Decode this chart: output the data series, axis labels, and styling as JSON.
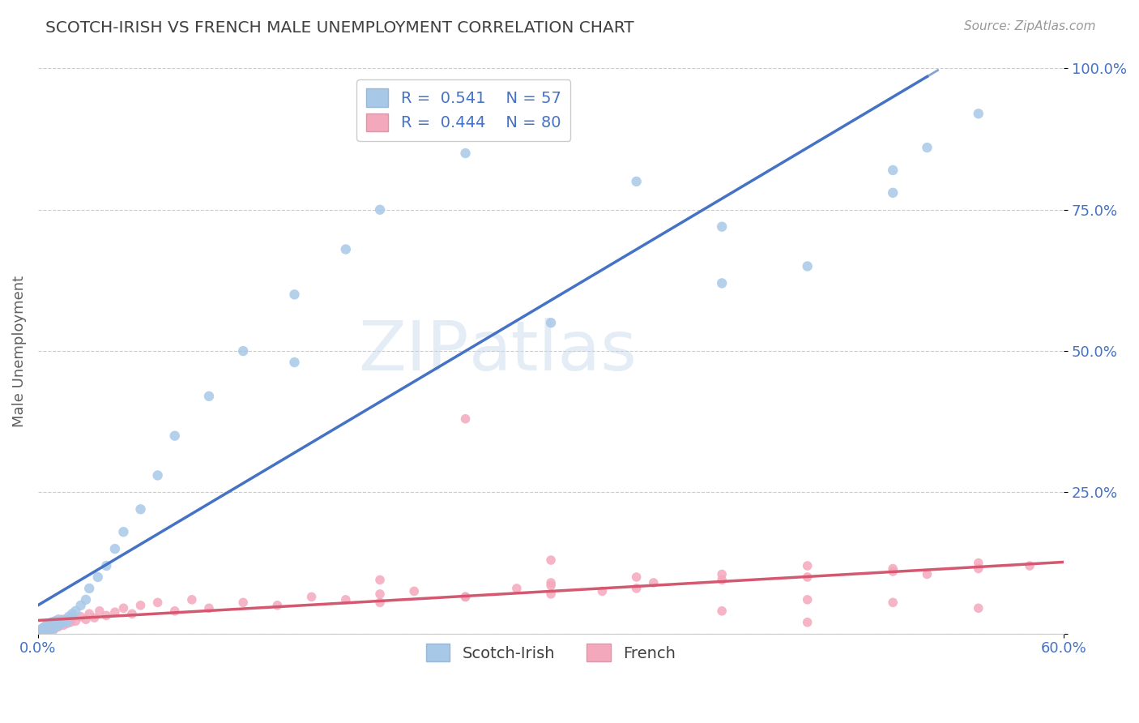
{
  "title": "SCOTCH-IRISH VS FRENCH MALE UNEMPLOYMENT CORRELATION CHART",
  "source": "Source: ZipAtlas.com",
  "ylabel": "Male Unemployment",
  "xlim": [
    0.0,
    0.6
  ],
  "ylim": [
    0.0,
    1.0
  ],
  "yticks": [
    0.0,
    0.25,
    0.5,
    0.75,
    1.0
  ],
  "ytick_labels": [
    "",
    "25.0%",
    "50.0%",
    "75.0%",
    "100.0%"
  ],
  "xticks": [
    0.0,
    0.6
  ],
  "xtick_labels": [
    "0.0%",
    "60.0%"
  ],
  "scotch_irish_R": 0.541,
  "scotch_irish_N": 57,
  "french_R": 0.444,
  "french_N": 80,
  "scotch_irish_marker_color": "#a8c8e8",
  "scotch_irish_line_color": "#4472c4",
  "french_marker_color": "#f4a8bc",
  "french_line_color": "#d45870",
  "watermark_zip": "ZIP",
  "watermark_atlas": "atlas",
  "background_color": "#ffffff",
  "grid_color": "#cccccc",
  "tick_color": "#4472c4",
  "title_color": "#404040",
  "ylabel_color": "#606060",
  "si_x": [
    0.001,
    0.002,
    0.003,
    0.003,
    0.004,
    0.004,
    0.005,
    0.005,
    0.005,
    0.006,
    0.006,
    0.007,
    0.007,
    0.008,
    0.008,
    0.009,
    0.009,
    0.01,
    0.01,
    0.011,
    0.012,
    0.012,
    0.013,
    0.014,
    0.015,
    0.016,
    0.017,
    0.018,
    0.02,
    0.022,
    0.025,
    0.028,
    0.03,
    0.035,
    0.04,
    0.045,
    0.05,
    0.06,
    0.07,
    0.08,
    0.1,
    0.12,
    0.15,
    0.18,
    0.2,
    0.25,
    0.3,
    0.35,
    0.4,
    0.45,
    0.5,
    0.52,
    0.55,
    0.3,
    0.4,
    0.5,
    0.15
  ],
  "si_y": [
    0.005,
    0.008,
    0.003,
    0.01,
    0.004,
    0.012,
    0.006,
    0.015,
    0.002,
    0.008,
    0.018,
    0.005,
    0.012,
    0.01,
    0.02,
    0.007,
    0.015,
    0.012,
    0.022,
    0.018,
    0.015,
    0.025,
    0.02,
    0.018,
    0.022,
    0.025,
    0.02,
    0.03,
    0.035,
    0.04,
    0.05,
    0.06,
    0.08,
    0.1,
    0.12,
    0.15,
    0.18,
    0.22,
    0.28,
    0.35,
    0.42,
    0.5,
    0.6,
    0.68,
    0.75,
    0.85,
    0.9,
    0.8,
    0.72,
    0.65,
    0.82,
    0.86,
    0.92,
    0.55,
    0.62,
    0.78,
    0.48
  ],
  "fr_x": [
    0.001,
    0.002,
    0.002,
    0.003,
    0.003,
    0.004,
    0.004,
    0.005,
    0.005,
    0.006,
    0.006,
    0.007,
    0.007,
    0.008,
    0.008,
    0.009,
    0.009,
    0.01,
    0.01,
    0.011,
    0.012,
    0.012,
    0.013,
    0.014,
    0.015,
    0.016,
    0.017,
    0.018,
    0.019,
    0.02,
    0.022,
    0.025,
    0.028,
    0.03,
    0.033,
    0.036,
    0.04,
    0.045,
    0.05,
    0.055,
    0.06,
    0.07,
    0.08,
    0.09,
    0.1,
    0.12,
    0.14,
    0.16,
    0.18,
    0.2,
    0.22,
    0.25,
    0.28,
    0.3,
    0.33,
    0.36,
    0.4,
    0.45,
    0.5,
    0.52,
    0.55,
    0.58,
    0.3,
    0.35,
    0.4,
    0.45,
    0.5,
    0.55,
    0.2,
    0.25,
    0.3,
    0.35,
    0.4,
    0.45,
    0.5,
    0.55,
    0.2,
    0.25,
    0.3,
    0.45
  ],
  "fr_y": [
    0.003,
    0.005,
    0.008,
    0.004,
    0.01,
    0.006,
    0.012,
    0.004,
    0.015,
    0.005,
    0.018,
    0.008,
    0.014,
    0.007,
    0.02,
    0.009,
    0.016,
    0.01,
    0.022,
    0.015,
    0.018,
    0.012,
    0.02,
    0.025,
    0.015,
    0.022,
    0.018,
    0.025,
    0.02,
    0.028,
    0.022,
    0.03,
    0.025,
    0.035,
    0.028,
    0.04,
    0.032,
    0.038,
    0.045,
    0.035,
    0.05,
    0.055,
    0.04,
    0.06,
    0.045,
    0.055,
    0.05,
    0.065,
    0.06,
    0.07,
    0.075,
    0.065,
    0.08,
    0.085,
    0.075,
    0.09,
    0.095,
    0.1,
    0.11,
    0.105,
    0.115,
    0.12,
    0.07,
    0.08,
    0.04,
    0.06,
    0.055,
    0.045,
    0.095,
    0.38,
    0.09,
    0.1,
    0.105,
    0.12,
    0.115,
    0.125,
    0.055,
    0.065,
    0.13,
    0.02
  ]
}
